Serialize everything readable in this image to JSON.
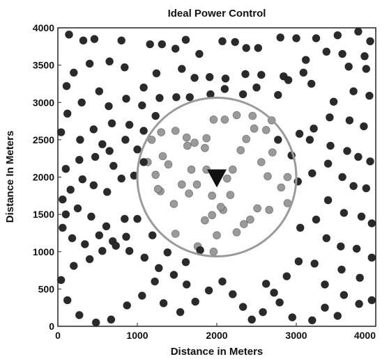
{
  "chart_data": {
    "type": "scatter",
    "title": "Ideal Power Control",
    "xlabel": "Distance in Meters",
    "ylabel": "Distance In Meters",
    "xlim": [
      0,
      4000
    ],
    "ylim": [
      0,
      4000
    ],
    "xticks": [
      0,
      1000,
      2000,
      3000,
      4000
    ],
    "yticks": [
      0,
      500,
      1000,
      1500,
      2000,
      2500,
      3000,
      3500,
      4000
    ],
    "grid": false,
    "cell_boundary": {
      "center_x": 2000,
      "center_y": 2000,
      "radius": 1000,
      "color": "#9a9a9a"
    },
    "base_station": {
      "x": 2000,
      "y": 2000,
      "marker": "triangle-down",
      "color": "#111111"
    },
    "series": [
      {
        "color": "#9a9a9a",
        "points": [
          [
            1180,
            2500
          ],
          [
            1300,
            2600
          ],
          [
            1480,
            2620
          ],
          [
            1620,
            2530
          ],
          [
            1720,
            2460
          ],
          [
            1630,
            2420
          ],
          [
            1850,
            2390
          ],
          [
            1870,
            2520
          ],
          [
            1960,
            2770
          ],
          [
            2100,
            2770
          ],
          [
            2250,
            2830
          ],
          [
            2450,
            2820
          ],
          [
            2470,
            2650
          ],
          [
            2620,
            2630
          ],
          [
            2690,
            2760
          ],
          [
            2370,
            2510
          ],
          [
            2700,
            2330
          ],
          [
            2560,
            2200
          ],
          [
            2640,
            2010
          ],
          [
            2890,
            2000
          ],
          [
            2810,
            1860
          ],
          [
            2890,
            1650
          ],
          [
            2660,
            1560
          ],
          [
            2510,
            1580
          ],
          [
            2420,
            1430
          ],
          [
            2340,
            1370
          ],
          [
            2250,
            1260
          ],
          [
            2000,
            1220
          ],
          [
            1850,
            1420
          ],
          [
            1940,
            1490
          ],
          [
            2080,
            1560
          ],
          [
            2170,
            1760
          ],
          [
            1940,
            1750
          ],
          [
            2130,
            1980
          ],
          [
            1870,
            2100
          ],
          [
            1680,
            2100
          ],
          [
            1560,
            1900
          ],
          [
            1650,
            1780
          ],
          [
            1460,
            1640
          ],
          [
            1290,
            1810
          ],
          [
            1480,
            1240
          ],
          [
            1760,
            1070
          ],
          [
            1960,
            1000
          ],
          [
            1320,
            2280
          ],
          [
            1130,
            2200
          ],
          [
            1230,
            2030
          ],
          [
            1260,
            1840
          ],
          [
            1390,
            2170
          ],
          [
            2200,
            2100
          ],
          [
            2300,
            2360
          ],
          [
            1750,
            1900
          ],
          [
            2050,
            1600
          ]
        ]
      },
      {
        "color": "#2a2a2a",
        "points": [
          [
            140,
            3910
          ],
          [
            320,
            3830
          ],
          [
            460,
            3850
          ],
          [
            800,
            3830
          ],
          [
            1160,
            3780
          ],
          [
            1310,
            3780
          ],
          [
            1480,
            3720
          ],
          [
            1610,
            3840
          ],
          [
            1780,
            3650
          ],
          [
            2070,
            3820
          ],
          [
            2230,
            3810
          ],
          [
            2370,
            3730
          ],
          [
            2520,
            3730
          ],
          [
            2800,
            3870
          ],
          [
            3000,
            3860
          ],
          [
            3250,
            3860
          ],
          [
            3520,
            3900
          ],
          [
            3780,
            3950
          ],
          [
            3930,
            3820
          ],
          [
            3380,
            3680
          ],
          [
            3580,
            3650
          ],
          [
            3860,
            3620
          ],
          [
            3660,
            3480
          ],
          [
            3880,
            3450
          ],
          [
            3120,
            3570
          ],
          [
            3090,
            3400
          ],
          [
            2840,
            3350
          ],
          [
            2560,
            3370
          ],
          [
            2360,
            3380
          ],
          [
            2110,
            3320
          ],
          [
            1910,
            3340
          ],
          [
            1720,
            3330
          ],
          [
            1560,
            3450
          ],
          [
            1240,
            3390
          ],
          [
            1080,
            3200
          ],
          [
            840,
            3470
          ],
          [
            650,
            3550
          ],
          [
            400,
            3520
          ],
          [
            200,
            3400
          ],
          [
            110,
            3220
          ],
          [
            120,
            2850
          ],
          [
            300,
            3000
          ],
          [
            520,
            3150
          ],
          [
            640,
            2950
          ],
          [
            860,
            3050
          ],
          [
            1060,
            2960
          ],
          [
            1280,
            3060
          ],
          [
            1490,
            3070
          ],
          [
            1660,
            3070
          ],
          [
            1920,
            3110
          ],
          [
            2100,
            3180
          ],
          [
            2330,
            3110
          ],
          [
            2500,
            3200
          ],
          [
            2770,
            3100
          ],
          [
            2900,
            3300
          ],
          [
            3190,
            3250
          ],
          [
            3470,
            3010
          ],
          [
            3720,
            3150
          ],
          [
            3920,
            3090
          ],
          [
            3420,
            2800
          ],
          [
            3670,
            2760
          ],
          [
            3850,
            2680
          ],
          [
            3220,
            2650
          ],
          [
            3040,
            2580
          ],
          [
            2770,
            2500
          ],
          [
            3170,
            2500
          ],
          [
            3430,
            2420
          ],
          [
            3640,
            2350
          ],
          [
            3780,
            2270
          ],
          [
            3930,
            2210
          ],
          [
            3400,
            2180
          ],
          [
            3200,
            2050
          ],
          [
            3020,
            1940
          ],
          [
            2940,
            2290
          ],
          [
            3580,
            2000
          ],
          [
            3720,
            1880
          ],
          [
            3880,
            1850
          ],
          [
            3400,
            1690
          ],
          [
            3600,
            1520
          ],
          [
            3820,
            1470
          ],
          [
            3950,
            1380
          ],
          [
            3250,
            1430
          ],
          [
            3050,
            1320
          ],
          [
            3380,
            1180
          ],
          [
            3560,
            1070
          ],
          [
            3760,
            1040
          ],
          [
            3950,
            920
          ],
          [
            3230,
            840
          ],
          [
            3030,
            870
          ],
          [
            3570,
            760
          ],
          [
            3800,
            650
          ],
          [
            3360,
            560
          ],
          [
            3600,
            420
          ],
          [
            3790,
            300
          ],
          [
            3950,
            350
          ],
          [
            3360,
            250
          ],
          [
            3520,
            140
          ],
          [
            3200,
            80
          ],
          [
            2950,
            120
          ],
          [
            2790,
            320
          ],
          [
            2720,
            450
          ],
          [
            2620,
            570
          ],
          [
            2880,
            670
          ],
          [
            2580,
            190
          ],
          [
            2440,
            90
          ],
          [
            2330,
            260
          ],
          [
            2200,
            430
          ],
          [
            2070,
            600
          ],
          [
            1900,
            480
          ],
          [
            1730,
            330
          ],
          [
            1540,
            190
          ],
          [
            1330,
            310
          ],
          [
            1220,
            600
          ],
          [
            1060,
            410
          ],
          [
            870,
            280
          ],
          [
            670,
            90
          ],
          [
            480,
            50
          ],
          [
            270,
            150
          ],
          [
            120,
            350
          ],
          [
            40,
            620
          ],
          [
            200,
            810
          ],
          [
            400,
            900
          ],
          [
            560,
            1010
          ],
          [
            690,
            1140
          ],
          [
            900,
            1010
          ],
          [
            1090,
            920
          ],
          [
            1270,
            780
          ],
          [
            1460,
            690
          ],
          [
            1620,
            560
          ],
          [
            1790,
            1020
          ],
          [
            1610,
            860
          ],
          [
            1380,
            990
          ],
          [
            1190,
            1220
          ],
          [
            1000,
            1440
          ],
          [
            840,
            1440
          ],
          [
            610,
            1340
          ],
          [
            420,
            1470
          ],
          [
            250,
            1580
          ],
          [
            100,
            1500
          ],
          [
            60,
            1320
          ],
          [
            180,
            1180
          ],
          [
            340,
            1100
          ],
          [
            520,
            1220
          ],
          [
            730,
            1080
          ],
          [
            860,
            1200
          ],
          [
            60,
            1700
          ],
          [
            160,
            1830
          ],
          [
            310,
            1970
          ],
          [
            450,
            1890
          ],
          [
            620,
            1800
          ],
          [
            800,
            1980
          ],
          [
            960,
            2020
          ],
          [
            1080,
            2200
          ],
          [
            1000,
            2370
          ],
          [
            850,
            2500
          ],
          [
            650,
            2350
          ],
          [
            470,
            2270
          ],
          [
            270,
            2230
          ],
          [
            100,
            2110
          ],
          [
            40,
            2600
          ],
          [
            280,
            2500
          ],
          [
            450,
            2640
          ],
          [
            680,
            2720
          ],
          [
            900,
            2700
          ],
          [
            1080,
            2620
          ],
          [
            1230,
            2820
          ],
          [
            700,
            2150
          ],
          [
            560,
            2440
          ]
        ]
      }
    ]
  }
}
